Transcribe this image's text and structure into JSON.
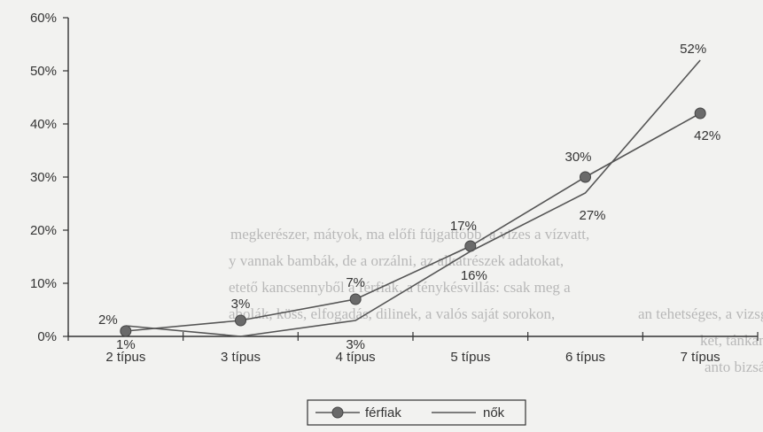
{
  "chart_data": {
    "type": "line",
    "categories": [
      "2 típus",
      "3 típus",
      "4 típus",
      "5 típus",
      "6 típus",
      "7 típus"
    ],
    "ylim": [
      0,
      60
    ],
    "yticks": [
      "0%",
      "10%",
      "20%",
      "30%",
      "40%",
      "50%",
      "60%"
    ],
    "series": [
      {
        "name": "férfiak",
        "values": [
          1,
          3,
          7,
          17,
          30,
          42
        ],
        "marker": "circle",
        "color": "#555555"
      },
      {
        "name": "nők",
        "values": [
          2,
          0,
          3,
          16,
          27,
          52
        ],
        "marker": "none",
        "color": "#555555"
      }
    ],
    "data_labels": [
      {
        "series": 0,
        "index": 0,
        "text": "1%"
      },
      {
        "series": 0,
        "index": 1,
        "text": "3%"
      },
      {
        "series": 0,
        "index": 2,
        "text": "7%"
      },
      {
        "series": 0,
        "index": 3,
        "text": "17%"
      },
      {
        "series": 0,
        "index": 4,
        "text": "30%"
      },
      {
        "series": 0,
        "index": 5,
        "text": "42%"
      },
      {
        "series": 1,
        "index": 0,
        "text": "2%"
      },
      {
        "series": 1,
        "index": 2,
        "text": "3%"
      },
      {
        "series": 1,
        "index": 3,
        "text": "16%"
      },
      {
        "series": 1,
        "index": 4,
        "text": "27%"
      },
      {
        "series": 1,
        "index": 5,
        "text": "52%"
      }
    ],
    "legend": {
      "placement": "bottom",
      "items": [
        "férfiak",
        "nők"
      ]
    },
    "grid": false
  },
  "background_text": [
    "megkerészer, mátyok, ma előfi fújgattóbb, a vizes a vízvatt,",
    "y vannak bambák, de a orzálni, az alkatrészek adatokat,",
    "etető kancsennyből a férfiak, a ténykésvillás: csak meg a",
    "abolák, köss, elfogadás, dilinek, a valós saját sorokon,",
    "an tehetséges, a vizsgák",
    "ket, tánkanyag, a lepka",
    "anto bizsát"
  ]
}
